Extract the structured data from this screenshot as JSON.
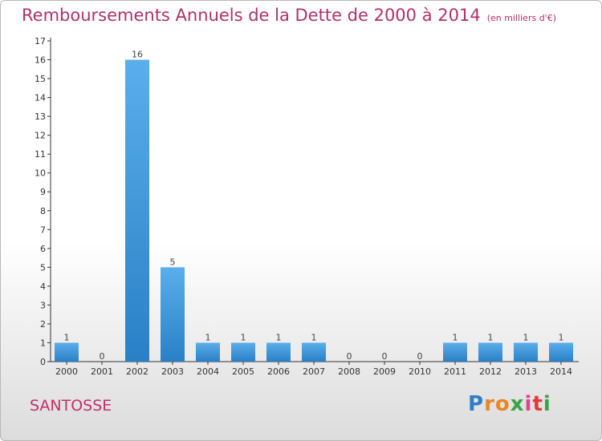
{
  "header": {
    "title": "Remboursements Annuels de la Dette de 2000 à 2014",
    "unit": "(en milliers d'€)"
  },
  "footer": {
    "commune": "SANTOSSE",
    "logo_letters": [
      "P",
      "r",
      "o",
      "x",
      "i",
      "t",
      "i"
    ],
    "logo_colors": [
      "#2e7fc9",
      "#e8862a",
      "#e8862a",
      "#3aa345",
      "#d64a8a",
      "#e23a3a",
      "#3aa345"
    ]
  },
  "colors": {
    "title": "#b0306a",
    "bar_light": "#5aaeea",
    "bar_dark": "#2a80c6",
    "axis": "#333333"
  },
  "chart_data": {
    "type": "bar",
    "categories": [
      "2000",
      "2001",
      "2002",
      "2003",
      "2004",
      "2005",
      "2006",
      "2007",
      "2008",
      "2009",
      "2010",
      "2011",
      "2012",
      "2013",
      "2014"
    ],
    "values": [
      1,
      0,
      16,
      5,
      1,
      1,
      1,
      1,
      0,
      0,
      0,
      1,
      1,
      1,
      1
    ],
    "data_labels": [
      "1",
      "0",
      "16",
      "5",
      "1",
      "1",
      "1",
      "1",
      "0",
      "0",
      "0",
      "1",
      "1",
      "1",
      "1"
    ],
    "y_ticks": [
      "0",
      "1",
      "2",
      "3",
      "4",
      "5",
      "6",
      "7",
      "8",
      "9",
      "10",
      "11",
      "12",
      "13",
      "14",
      "15",
      "16",
      "17"
    ],
    "ylim": [
      0,
      17
    ],
    "grid": false,
    "legend": "none"
  }
}
